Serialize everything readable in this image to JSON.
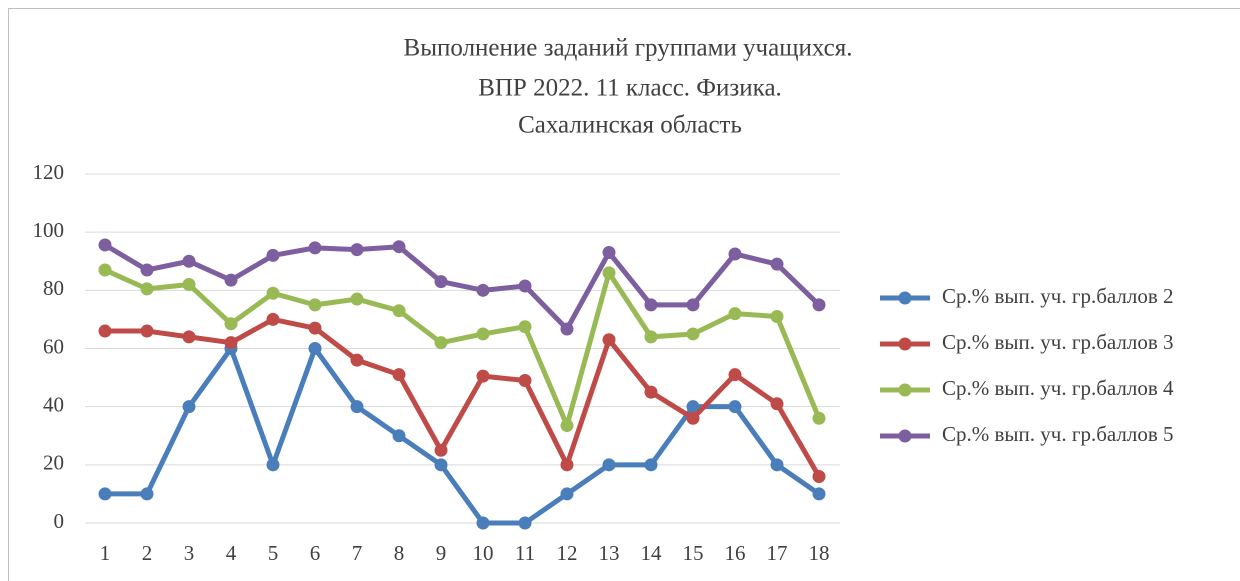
{
  "chart_data": {
    "type": "line",
    "title": [
      "Выполнение заданий группами учащихся.",
      "ВПР 2022. 11 класс. Физика.",
      "Сахалинская область"
    ],
    "categories": [
      "1",
      "2",
      "3",
      "4",
      "5",
      "6",
      "7",
      "8",
      "9",
      "10",
      "11",
      "12",
      "13",
      "14",
      "15",
      "16",
      "17",
      "18"
    ],
    "series": [
      {
        "name": "Ср.% вып. уч. гр.баллов 2",
        "color": "#4a7ebb",
        "values": [
          10,
          10,
          40,
          60,
          20,
          60,
          40,
          30,
          20,
          0,
          0,
          10,
          20,
          20,
          40,
          40,
          20,
          10
        ]
      },
      {
        "name": "Ср.% вып. уч. гр.баллов 3",
        "color": "#be4b48",
        "values": [
          66,
          66,
          64,
          62,
          70,
          67,
          56,
          51,
          25,
          50.5,
          49,
          20,
          63,
          45,
          36,
          51,
          41,
          16
        ]
      },
      {
        "name": "Ср.% вып. уч. гр.баллов 4",
        "color": "#98b954",
        "values": [
          87,
          80.5,
          82,
          68.5,
          79,
          75,
          77,
          73,
          62,
          65,
          67.5,
          33.5,
          86,
          64,
          65,
          72,
          71,
          36
        ]
      },
      {
        "name": "Ср.% вып. уч. гр.баллов 5",
        "color": "#7d5fa0",
        "values": [
          95.6,
          87,
          90,
          83.5,
          92,
          94.6,
          94,
          95,
          83,
          80,
          81.5,
          66.7,
          93,
          75,
          75,
          92.5,
          89,
          75
        ]
      }
    ],
    "ylim": [
      0,
      120
    ],
    "yticks": [
      0,
      20,
      40,
      60,
      80,
      100,
      120
    ],
    "grid": true,
    "legend": "right"
  }
}
